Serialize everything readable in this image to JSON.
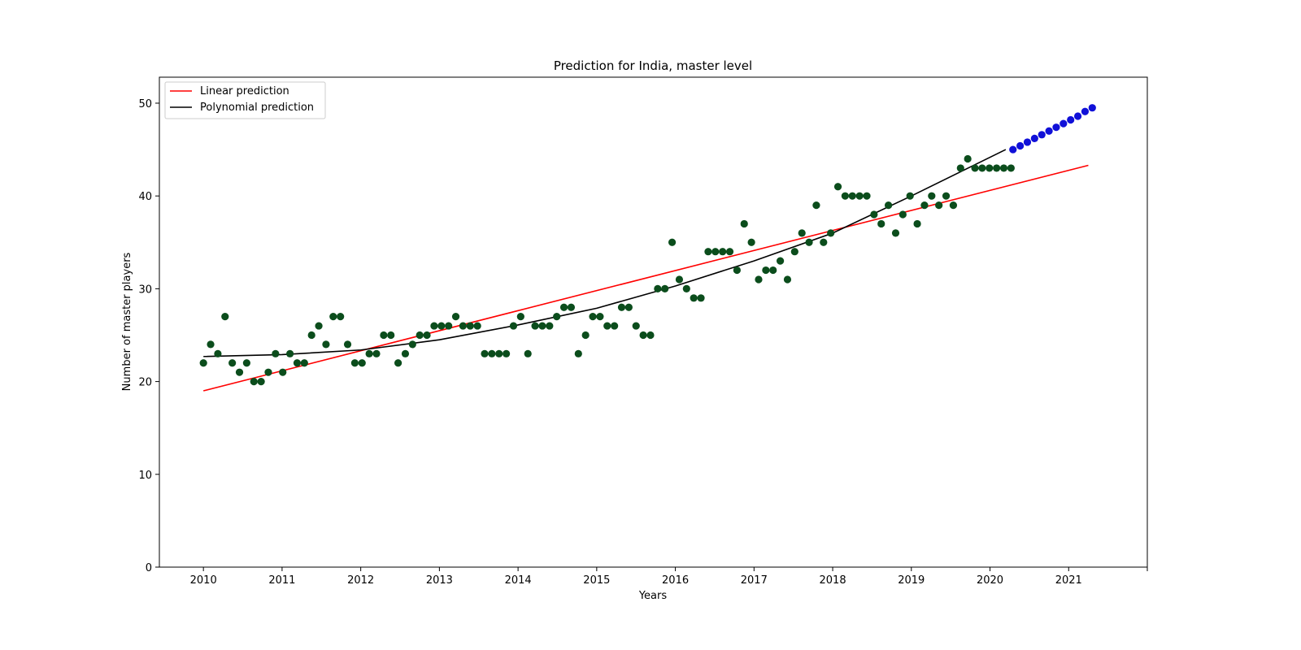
{
  "chart_data": {
    "type": "scatter",
    "title": "Prediction for India, master level",
    "xlabel": "Years",
    "ylabel": "Number of master players",
    "xlim": [
      2009.44,
      2022.0
    ],
    "ylim": [
      0,
      52.8
    ],
    "x_ticks": [
      "2010",
      "2011",
      "2012",
      "2013",
      "2014",
      "2015",
      "2016",
      "2017",
      "2018",
      "2019",
      "2020",
      "2021"
    ],
    "y_ticks": [
      "0",
      "10",
      "20",
      "30",
      "40",
      "50"
    ],
    "legend": {
      "placement": "upper-left",
      "entries": [
        {
          "label": "Linear prediction",
          "color": "#ff0000"
        },
        {
          "label": "Polynomial prediction",
          "color": "#000000"
        }
      ]
    },
    "series": [
      {
        "kind": "scatter",
        "color": "#0b4d1c",
        "start_year": 2010.0,
        "step_years": 0.09167,
        "values": [
          22,
          24,
          23,
          27,
          22,
          21,
          22,
          20,
          20,
          21,
          23,
          21,
          23,
          22,
          22,
          25,
          26,
          24,
          27,
          27,
          24,
          22,
          22,
          23,
          23,
          25,
          25,
          22,
          23,
          24,
          25,
          25,
          26,
          26,
          26,
          27,
          26,
          26,
          26,
          23,
          23,
          23,
          23,
          26,
          27,
          23,
          26,
          26,
          26,
          27,
          28,
          28,
          23,
          25,
          27,
          27,
          26,
          26,
          28,
          28,
          26,
          25,
          25,
          30,
          30,
          35,
          31,
          30,
          29,
          29,
          34,
          34,
          34,
          34,
          32,
          37,
          35,
          31,
          32,
          32,
          33,
          31,
          34,
          36,
          35,
          39,
          35,
          36,
          41,
          40,
          40,
          40,
          40,
          38,
          37,
          39,
          36,
          38,
          40,
          37,
          39,
          40,
          39,
          40,
          39,
          43,
          44,
          43,
          43,
          43,
          43,
          43,
          43
        ]
      },
      {
        "kind": "scatter",
        "color": "#1010d8",
        "start_year": 2020.2917,
        "step_years": 0.09167,
        "values": [
          45.0,
          45.4,
          45.8,
          46.2,
          46.6,
          47.0,
          47.4,
          47.8,
          48.2,
          48.6,
          49.1,
          49.5
        ]
      },
      {
        "kind": "line",
        "name": "Linear prediction",
        "color": "#ff0000",
        "x": [
          2010.0,
          2021.25
        ],
        "y": [
          19.0,
          43.3
        ]
      },
      {
        "kind": "line",
        "name": "Polynomial prediction",
        "color": "#000000",
        "x": [
          2010.0,
          2011.0,
          2012.0,
          2013.0,
          2014.0,
          2015.0,
          2016.0,
          2017.0,
          2018.0,
          2019.0,
          2020.2
        ],
        "y": [
          22.7,
          22.9,
          23.4,
          24.5,
          26.1,
          27.9,
          30.3,
          33.0,
          36.0,
          40.0,
          45.0
        ]
      }
    ]
  }
}
